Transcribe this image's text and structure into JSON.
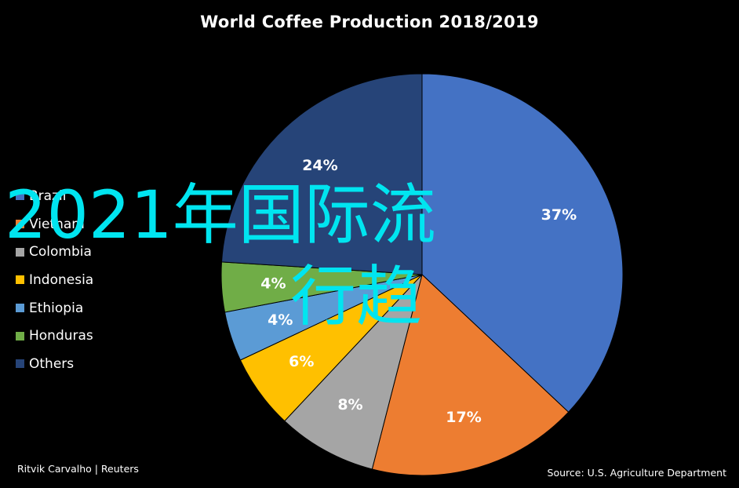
{
  "chart_data": {
    "type": "pie",
    "title": "World Coffee Production 2018/2019",
    "categories": [
      "Brazil",
      "Vietnam",
      "Colombia",
      "Indonesia",
      "Ethiopia",
      "Honduras",
      "Others"
    ],
    "values": [
      37,
      17,
      8,
      6,
      4,
      4,
      24
    ],
    "data_labels": [
      "37%",
      "17%",
      "8%",
      "6%",
      "4%",
      "4%",
      "24%"
    ],
    "colors": [
      "#4472c4",
      "#ed7d31",
      "#a5a5a5",
      "#ffc000",
      "#5b9bd5",
      "#70ad47",
      "#264478"
    ],
    "legend_position": "left",
    "legend_labels": [
      "Brazil",
      "Vietnam",
      "Colombia",
      "Indonesia",
      "Ethiopia",
      "Honduras",
      "Others"
    ]
  },
  "overlay_text": {
    "line1": "2021年国际流",
    "line2": "行趋"
  },
  "credit": "Ritvik Carvalho | Reuters",
  "source": "Source: U.S. Agriculture Department",
  "label_color": "#ffffff"
}
